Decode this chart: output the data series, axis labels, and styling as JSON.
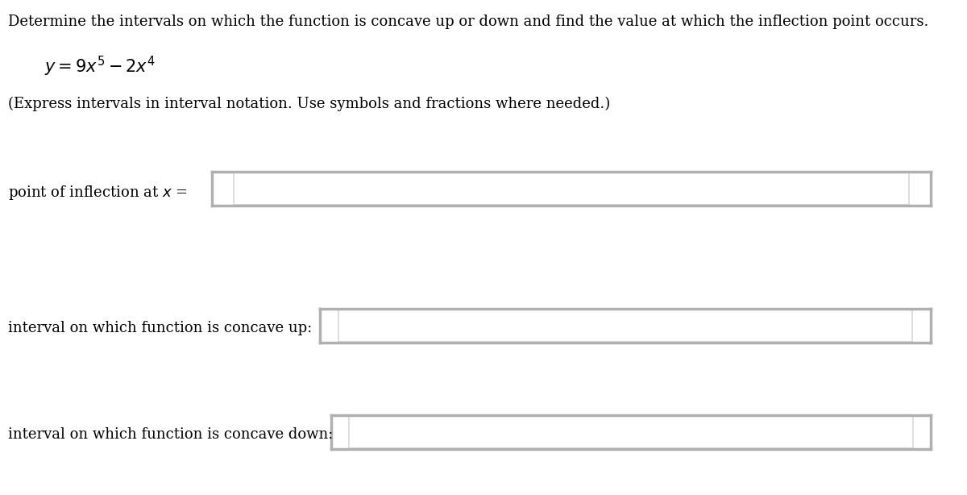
{
  "title_text": "Determine the intervals on which the function is concave up or down and find the value at which the inflection point occurs.",
  "equation_text": "$y = 9x^5 - 2x^4$",
  "instruction_text": "(Express intervals in interval notation. Use symbols and fractions where needed.)",
  "label1": "point of inflection at $x$ =",
  "label2": "interval on which function is concave up:",
  "label3": "interval on which function is concave down:",
  "bg_color": "#ffffff",
  "text_color": "#000000",
  "box_edge_color": "#b0b0b0",
  "box_edge_color2": "#d8d8d8",
  "title_fontsize": 13.0,
  "equation_fontsize": 15.0,
  "instruction_fontsize": 13.0,
  "label_fontsize": 13.0,
  "fig_width": 12.0,
  "fig_height": 6.14,
  "dpi": 100
}
